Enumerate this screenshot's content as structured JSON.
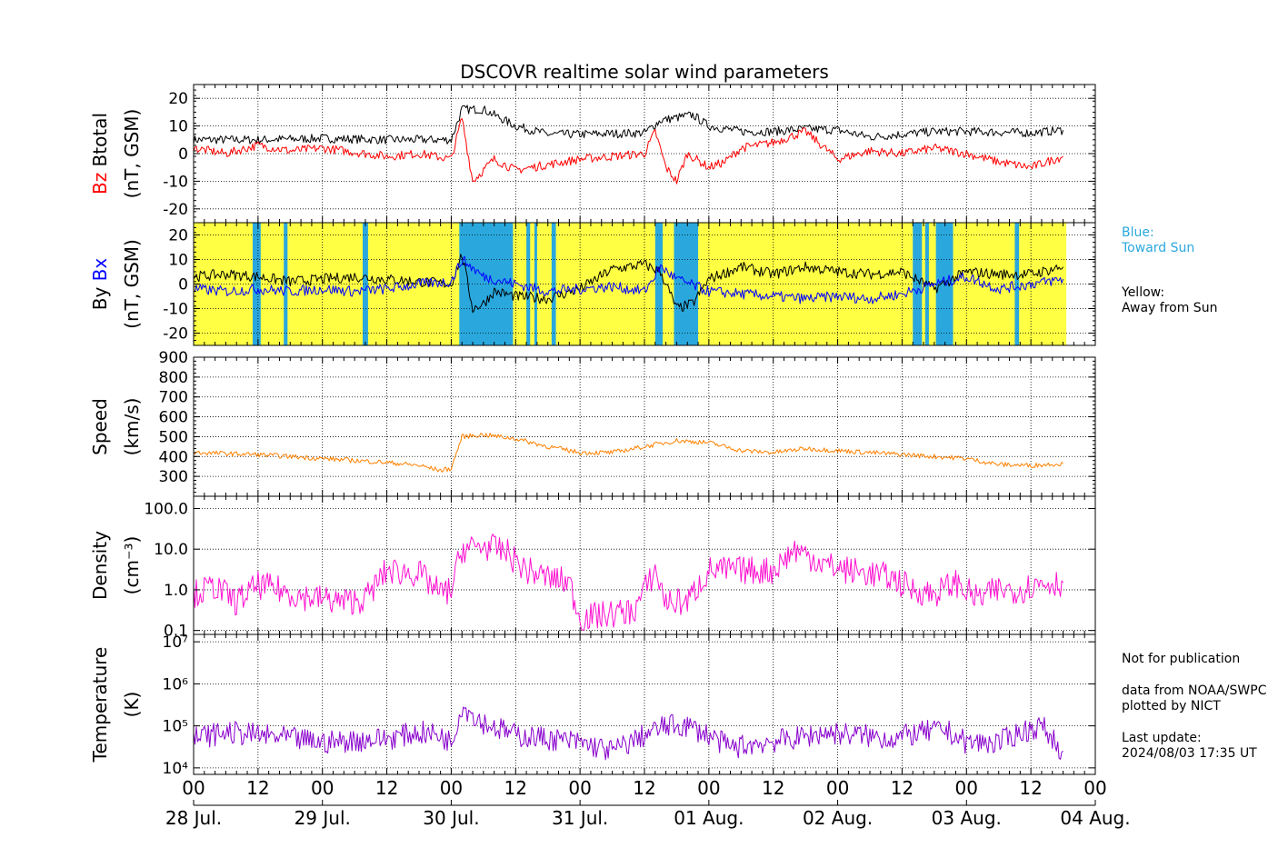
{
  "figure": {
    "title": "DSCOVR realtime solar wind parameters"
  },
  "colors": {
    "black": "#000000",
    "red": "#ff0000",
    "blue": "#0000ff",
    "orange": "#ff8000",
    "magenta": "#ff10d0",
    "purple": "#8800cc",
    "toward_sun": "#2aa8de",
    "away_from_sun": "#ffff44"
  },
  "side_notes": {
    "blue_title": "Blue:",
    "blue_desc": "Toward Sun",
    "yellow_title": "Yellow:",
    "yellow_desc": "Away from Sun",
    "not_for_publication": "Not for publication",
    "data_from": "data from NOAA/SWPC",
    "plotted_by": "plotted by NICT",
    "last_update_label": "Last update:",
    "last_update_value": "2024/08/03 17:35 UT"
  },
  "chart_data": [
    {
      "type": "line",
      "panel": "magnetic field magnitude and Bz",
      "ylabel_parts": [
        "Bz",
        "Btotal"
      ],
      "ylabel_units": "(nT, GSM)",
      "ylim": [
        -25,
        25
      ],
      "yticks": [
        20,
        10,
        0,
        -10,
        -20
      ],
      "x_range_hours": [
        0,
        168
      ],
      "series": [
        {
          "name": "Btotal",
          "color": "#000000",
          "points": [
            [
              0,
              5
            ],
            [
              12,
              5
            ],
            [
              24,
              5.5
            ],
            [
              36,
              5
            ],
            [
              48,
              5
            ],
            [
              50,
              16
            ],
            [
              54,
              16
            ],
            [
              60,
              10
            ],
            [
              66,
              7
            ],
            [
              72,
              7
            ],
            [
              84,
              7.5
            ],
            [
              87,
              12
            ],
            [
              93,
              14
            ],
            [
              96,
              10
            ],
            [
              102,
              8
            ],
            [
              108,
              8
            ],
            [
              114,
              9
            ],
            [
              120,
              8.5
            ],
            [
              126,
              6
            ],
            [
              132,
              7
            ],
            [
              138,
              8
            ],
            [
              144,
              8
            ],
            [
              156,
              7.5
            ],
            [
              162,
              8.5
            ]
          ]
        },
        {
          "name": "Bz",
          "color": "#ff0000",
          "points": [
            [
              0,
              2
            ],
            [
              6,
              0
            ],
            [
              12,
              3
            ],
            [
              18,
              1
            ],
            [
              24,
              2
            ],
            [
              36,
              -1
            ],
            [
              42,
              0
            ],
            [
              48,
              -2
            ],
            [
              50,
              13
            ],
            [
              52,
              -10
            ],
            [
              56,
              -2
            ],
            [
              60,
              -6
            ],
            [
              66,
              -4
            ],
            [
              72,
              -2
            ],
            [
              84,
              0
            ],
            [
              86,
              8
            ],
            [
              88,
              -5
            ],
            [
              90,
              -10
            ],
            [
              92,
              0
            ],
            [
              96,
              -5
            ],
            [
              99,
              -3
            ],
            [
              102,
              2
            ],
            [
              108,
              4
            ],
            [
              114,
              8
            ],
            [
              120,
              -2
            ],
            [
              126,
              1
            ],
            [
              132,
              0
            ],
            [
              138,
              2
            ],
            [
              144,
              0
            ],
            [
              150,
              -3
            ],
            [
              156,
              -5
            ],
            [
              162,
              -1
            ]
          ]
        }
      ]
    },
    {
      "type": "line",
      "panel": "By and Bx with sector polarity",
      "ylabel_parts": [
        "By",
        "Bx"
      ],
      "ylabel_units": "(nT, GSM)",
      "ylim": [
        -25,
        25
      ],
      "yticks": [
        20,
        10,
        0,
        -10,
        -20
      ],
      "x_range_hours": [
        0,
        168
      ],
      "sector_legend": {
        "blue": "Toward Sun",
        "yellow": "Away from Sun"
      },
      "toward_sun_intervals_hours": [
        [
          11,
          12.5
        ],
        [
          16.8,
          17.5
        ],
        [
          31.5,
          32.5
        ],
        [
          49.5,
          59.5
        ],
        [
          62,
          62.7
        ],
        [
          63.5,
          64
        ],
        [
          66.7,
          67.5
        ],
        [
          86,
          87.4
        ],
        [
          89.5,
          94
        ],
        [
          134,
          135.7
        ],
        [
          136.3,
          137
        ],
        [
          138.3,
          141.5
        ],
        [
          153,
          153.8
        ]
      ],
      "data_end_hour": 162.6,
      "series": [
        {
          "name": "By",
          "color": "#000000",
          "points": [
            [
              0,
              3
            ],
            [
              6,
              4
            ],
            [
              12,
              3
            ],
            [
              18,
              1
            ],
            [
              24,
              2
            ],
            [
              30,
              3
            ],
            [
              36,
              2
            ],
            [
              42,
              1
            ],
            [
              48,
              0
            ],
            [
              50,
              12
            ],
            [
              52,
              -10
            ],
            [
              54,
              -8
            ],
            [
              56,
              -3
            ],
            [
              60,
              -5
            ],
            [
              66,
              -6
            ],
            [
              72,
              -2
            ],
            [
              78,
              6
            ],
            [
              84,
              8
            ],
            [
              87,
              5
            ],
            [
              90,
              -10
            ],
            [
              93,
              -8
            ],
            [
              96,
              2
            ],
            [
              102,
              7
            ],
            [
              108,
              4
            ],
            [
              114,
              7
            ],
            [
              120,
              5
            ],
            [
              126,
              4
            ],
            [
              132,
              5
            ],
            [
              138,
              -2
            ],
            [
              144,
              5
            ],
            [
              150,
              4
            ],
            [
              156,
              4
            ],
            [
              162,
              7
            ]
          ]
        },
        {
          "name": "Bx",
          "color": "#0000ff",
          "points": [
            [
              0,
              -2
            ],
            [
              6,
              -3
            ],
            [
              12,
              -2
            ],
            [
              18,
              -3
            ],
            [
              24,
              -2
            ],
            [
              30,
              -3
            ],
            [
              36,
              -2
            ],
            [
              42,
              0
            ],
            [
              48,
              1
            ],
            [
              50,
              10
            ],
            [
              54,
              3
            ],
            [
              60,
              0
            ],
            [
              66,
              -3
            ],
            [
              72,
              -2
            ],
            [
              78,
              -1
            ],
            [
              84,
              -3
            ],
            [
              87,
              7
            ],
            [
              90,
              2
            ],
            [
              96,
              -3
            ],
            [
              102,
              -4
            ],
            [
              108,
              -5
            ],
            [
              114,
              -6
            ],
            [
              120,
              -5
            ],
            [
              126,
              -6
            ],
            [
              132,
              -4
            ],
            [
              138,
              0
            ],
            [
              144,
              3
            ],
            [
              150,
              -2
            ],
            [
              156,
              0
            ],
            [
              162,
              2
            ]
          ]
        }
      ]
    },
    {
      "type": "line",
      "panel": "solar wind speed",
      "ylabel": "Speed",
      "ylabel_units": "(km/s)",
      "ylim": [
        200,
        900
      ],
      "yticks": [
        900,
        800,
        700,
        600,
        500,
        400,
        300
      ],
      "x_range_hours": [
        0,
        168
      ],
      "series": [
        {
          "name": "Speed",
          "color": "#ff8000",
          "points": [
            [
              0,
              420
            ],
            [
              12,
              410
            ],
            [
              18,
              400
            ],
            [
              24,
              390
            ],
            [
              30,
              380
            ],
            [
              36,
              370
            ],
            [
              42,
              355
            ],
            [
              46,
              330
            ],
            [
              48,
              340
            ],
            [
              50,
              500
            ],
            [
              54,
              510
            ],
            [
              60,
              490
            ],
            [
              66,
              450
            ],
            [
              72,
              420
            ],
            [
              78,
              420
            ],
            [
              84,
              450
            ],
            [
              90,
              480
            ],
            [
              96,
              470
            ],
            [
              102,
              430
            ],
            [
              108,
              420
            ],
            [
              114,
              440
            ],
            [
              120,
              430
            ],
            [
              126,
              420
            ],
            [
              132,
              410
            ],
            [
              138,
              400
            ],
            [
              144,
              390
            ],
            [
              150,
              360
            ],
            [
              156,
              355
            ],
            [
              162,
              365
            ]
          ]
        }
      ]
    },
    {
      "type": "line",
      "panel": "proton density",
      "ylabel": "Density",
      "ylabel_units": "(cm⁻³)",
      "yscale": "log",
      "ylim": [
        0.08,
        200
      ],
      "yticks": [
        0.1,
        1.0,
        10.0,
        100.0
      ],
      "ytick_labels": [
        "0.1",
        "1.0",
        "10.0",
        "100.0"
      ],
      "x_range_hours": [
        0,
        168
      ],
      "series": [
        {
          "name": "Density",
          "color": "#ff10d0",
          "points": [
            [
              0,
              0.8
            ],
            [
              4,
              1.2
            ],
            [
              8,
              0.5
            ],
            [
              12,
              1.3
            ],
            [
              16,
              1.0
            ],
            [
              20,
              0.7
            ],
            [
              24,
              0.6
            ],
            [
              28,
              0.5
            ],
            [
              32,
              0.6
            ],
            [
              36,
              3
            ],
            [
              42,
              2.5
            ],
            [
              46,
              0.8
            ],
            [
              48,
              1
            ],
            [
              50,
              10
            ],
            [
              54,
              12
            ],
            [
              58,
              9
            ],
            [
              62,
              3
            ],
            [
              66,
              2
            ],
            [
              70,
              1.5
            ],
            [
              72,
              0.2
            ],
            [
              82,
              0.3
            ],
            [
              86,
              3
            ],
            [
              88,
              0.5
            ],
            [
              92,
              0.5
            ],
            [
              96,
              3
            ],
            [
              102,
              3
            ],
            [
              108,
              3
            ],
            [
              112,
              10
            ],
            [
              118,
              4
            ],
            [
              122,
              3
            ],
            [
              126,
              2.5
            ],
            [
              130,
              2
            ],
            [
              134,
              1
            ],
            [
              138,
              0.8
            ],
            [
              142,
              1.5
            ],
            [
              146,
              0.6
            ],
            [
              150,
              1
            ],
            [
              154,
              1
            ],
            [
              158,
              1.5
            ],
            [
              162,
              1.5
            ]
          ]
        }
      ]
    },
    {
      "type": "line",
      "panel": "proton temperature",
      "ylabel": "Temperature",
      "ylabel_units": "(K)",
      "yscale": "log",
      "ylim": [
        7000,
        15000000
      ],
      "yticks": [
        10000,
        100000,
        1000000,
        10000000
      ],
      "ytick_labels": [
        "10⁴",
        "10⁵",
        "10⁶",
        "10⁷"
      ],
      "x_range_hours": [
        0,
        168
      ],
      "series": [
        {
          "name": "Temperature",
          "color": "#8800cc",
          "points": [
            [
              0,
              50000
            ],
            [
              6,
              70000
            ],
            [
              12,
              60000
            ],
            [
              18,
              50000
            ],
            [
              24,
              40000
            ],
            [
              30,
              45000
            ],
            [
              36,
              50000
            ],
            [
              42,
              70000
            ],
            [
              46,
              60000
            ],
            [
              48,
              40000
            ],
            [
              50,
              300000
            ],
            [
              54,
              120000
            ],
            [
              60,
              60000
            ],
            [
              66,
              50000
            ],
            [
              72,
              40000
            ],
            [
              78,
              25000
            ],
            [
              84,
              60000
            ],
            [
              88,
              100000
            ],
            [
              92,
              100000
            ],
            [
              96,
              60000
            ],
            [
              100,
              30000
            ],
            [
              106,
              40000
            ],
            [
              112,
              50000
            ],
            [
              118,
              70000
            ],
            [
              124,
              60000
            ],
            [
              130,
              50000
            ],
            [
              136,
              70000
            ],
            [
              140,
              80000
            ],
            [
              144,
              40000
            ],
            [
              150,
              40000
            ],
            [
              154,
              70000
            ],
            [
              158,
              100000
            ],
            [
              162,
              25000
            ]
          ]
        }
      ]
    }
  ],
  "x_axis": {
    "hour_tick_labels": [
      "00",
      "12",
      "00",
      "12",
      "00",
      "12",
      "00",
      "12",
      "00",
      "12",
      "00",
      "12",
      "00",
      "12",
      "00"
    ],
    "date_labels": [
      "28 Jul.",
      "29 Jul.",
      "30 Jul.",
      "31 Jul.",
      "01 Aug.",
      "02 Aug.",
      "03 Aug.",
      "04 Aug."
    ]
  }
}
